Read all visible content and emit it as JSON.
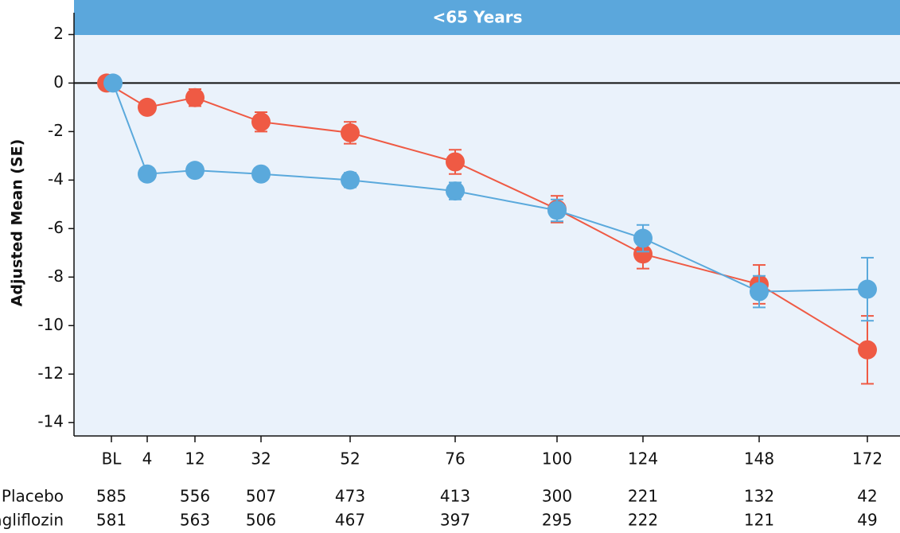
{
  "chart_data": {
    "type": "line",
    "title": "<65 Years",
    "y_label": "Adjusted Mean (SE)",
    "categories": [
      "BL",
      "4",
      "12",
      "32",
      "52",
      "76",
      "100",
      "124",
      "148",
      "172"
    ],
    "series": [
      {
        "name": "Placebo",
        "color": "#ef5a44",
        "values": [
          0,
          -1.0,
          -0.6,
          -1.6,
          -2.05,
          -3.25,
          -5.2,
          -7.05,
          -8.3,
          -11.0
        ],
        "errors": [
          0,
          0.2,
          0.35,
          0.4,
          0.45,
          0.5,
          0.55,
          0.6,
          0.8,
          1.4
        ],
        "counts": [
          585,
          null,
          556,
          507,
          473,
          413,
          300,
          221,
          132,
          42
        ]
      },
      {
        "name": "Sotagliflozin",
        "color": "#5aa9dc",
        "values": [
          0,
          -3.75,
          -3.6,
          -3.75,
          -4.0,
          -4.45,
          -5.25,
          -6.4,
          -8.6,
          -8.5
        ],
        "errors": [
          0,
          0.15,
          0.2,
          0.25,
          0.3,
          0.35,
          0.45,
          0.55,
          0.65,
          1.3
        ],
        "counts": [
          581,
          null,
          563,
          506,
          467,
          397,
          295,
          222,
          121,
          49
        ]
      }
    ],
    "ylim": [
      -14.55,
      2.9
    ],
    "yticks": [
      2,
      0,
      -2,
      -4,
      -6,
      -8,
      -10,
      -12,
      -14
    ]
  }
}
